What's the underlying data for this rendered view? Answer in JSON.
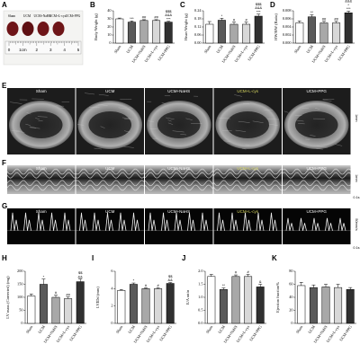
{
  "photo": {
    "panel": "A",
    "labels": [
      "Sham",
      "UCM",
      "UCM+NaHS",
      "UCM+L-cys",
      "UCM+PPG"
    ],
    "ruler": [
      "0",
      "1cm",
      "2",
      "3",
      "4",
      "5"
    ]
  },
  "echo": {
    "panel": "E",
    "labels": [
      "Sham",
      "UCM",
      "UCM+NaHS",
      "UCM+L-cys",
      "UCM+PPG"
    ],
    "scale": [
      "1mm"
    ]
  },
  "mmode": {
    "panel": "F",
    "labels": [
      "Sham",
      "UCM",
      "UCM+NaHS",
      "UCM+L-cys",
      "UCM+PPG"
    ],
    "scale": [
      "1mm",
      "0.1s"
    ]
  },
  "doppler": {
    "panel": "G",
    "labels": [
      "Sham",
      "UCM",
      "UCM+NaHS",
      "UCM+L-cys",
      "UCM+PPG"
    ],
    "scale": [
      "50mm/s",
      "0.1s"
    ]
  },
  "chart_data": [
    {
      "type": "bar",
      "panel": "B",
      "ylabel": "Body Weight (g)",
      "categories": [
        "Sham",
        "UCM",
        "UCM+NaHS",
        "UCM+L-cys",
        "UCM+PPG"
      ],
      "colors": [
        "#ffffff",
        "#5a5a5a",
        "#a8a8a8",
        "#d8d8d8",
        "#303030"
      ],
      "values": [
        30,
        26,
        28,
        28,
        26
      ],
      "errors": [
        1,
        1.5,
        1,
        1,
        1
      ],
      "annotations": [
        null,
        [
          "***"
        ],
        [
          "##"
        ],
        [
          "##"
        ],
        [
          "***",
          "&&&",
          "$$$"
        ]
      ],
      "ylim": [
        0,
        40
      ],
      "yticks": [
        0,
        10,
        20,
        30,
        40
      ]
    },
    {
      "type": "bar",
      "panel": "C",
      "ylabel": "Heart Weight (g)",
      "categories": [
        "Sham",
        "UCM",
        "UCM+NaHS",
        "UCM+L-cys",
        "UCM+PPG"
      ],
      "colors": [
        "#ffffff",
        "#5a5a5a",
        "#a8a8a8",
        "#d8d8d8",
        "#303030"
      ],
      "values": [
        0.14,
        0.17,
        0.14,
        0.14,
        0.2
      ],
      "errors": [
        0.02,
        0.015,
        0.015,
        0.015,
        0.015
      ],
      "annotations": [
        null,
        [
          "*"
        ],
        [
          "#"
        ],
        [
          "#"
        ],
        [
          "***",
          "&&&",
          "$$$"
        ]
      ],
      "ylim": [
        0,
        0.24
      ],
      "yticks": [
        {
          "value": 0,
          "label": "0.00"
        },
        0.06,
        0.12,
        0.18,
        0.24
      ]
    },
    {
      "type": "bar",
      "panel": "D",
      "ylabel": "HW/BW (Ratio)",
      "categories": [
        "Sham",
        "UCM",
        "UCM+NaHS",
        "UCM+L-cys",
        "UCM+PPG"
      ],
      "colors": [
        "#ffffff",
        "#5a5a5a",
        "#a8a8a8",
        "#d8d8d8",
        "#303030"
      ],
      "values": [
        0.005,
        0.0065,
        0.005,
        0.005,
        0.0075
      ],
      "errors": [
        0.0005,
        0.0005,
        0.0004,
        0.0004,
        0.0004
      ],
      "annotations": [
        null,
        [
          "**"
        ],
        [
          "##"
        ],
        [
          "##"
        ],
        [
          "***",
          "*",
          "&&&",
          "$$$"
        ]
      ],
      "ylim": [
        0,
        0.008
      ],
      "yticks": [
        {
          "value": 0,
          "label": "0.000"
        },
        0.002,
        0.004,
        0.006,
        0.008
      ]
    },
    {
      "type": "bar",
      "panel": "H",
      "ylabel": "LV mass (Corrected) (mg)",
      "categories": [
        "Sham",
        "UCM",
        "UCM+NaHS",
        "UCM+L-cys",
        "UCM+PPG"
      ],
      "colors": [
        "#ffffff",
        "#5a5a5a",
        "#a8a8a8",
        "#d8d8d8",
        "#303030"
      ],
      "values": [
        105,
        150,
        100,
        95,
        160
      ],
      "errors": [
        8,
        20,
        8,
        6,
        10
      ],
      "annotations": [
        null,
        [
          "*"
        ],
        [
          "#"
        ],
        [
          "##"
        ],
        [
          "&&",
          "$$"
        ]
      ],
      "ylim": [
        0,
        200
      ],
      "yticks": [
        0,
        50,
        100,
        150,
        200
      ]
    },
    {
      "type": "bar",
      "panel": "I",
      "ylabel": "LVIDd (mm)",
      "categories": [
        "Sham",
        "UCM",
        "UCM+NaHS",
        "UCM+L-cys",
        "UCM+PPG"
      ],
      "colors": [
        "#ffffff",
        "#5a5a5a",
        "#a8a8a8",
        "#d8d8d8",
        "#303030"
      ],
      "values": [
        3.8,
        4.5,
        4,
        4,
        4.6
      ],
      "errors": [
        0.1,
        0.15,
        0.1,
        0.1,
        0.1
      ],
      "annotations": [
        null,
        [
          "*"
        ],
        [
          "#"
        ],
        [
          "#"
        ],
        [
          "&&",
          "$$"
        ]
      ],
      "ylim": [
        0,
        6
      ],
      "yticks": [
        0,
        2,
        4,
        6
      ]
    },
    {
      "type": "bar",
      "panel": "J",
      "ylabel": "E/A ratio",
      "categories": [
        "Sham",
        "UCM",
        "UCM+NaHS",
        "UCM+L-cys",
        "UCM+PPG"
      ],
      "colors": [
        "#ffffff",
        "#5a5a5a",
        "#a8a8a8",
        "#d8d8d8",
        "#303030"
      ],
      "values": [
        1.8,
        1.3,
        1.8,
        1.8,
        1.4
      ],
      "errors": [
        0.08,
        0.06,
        0.06,
        0.08,
        0.1
      ],
      "annotations": [
        null,
        [
          "**"
        ],
        [
          "#"
        ],
        [
          "#"
        ],
        [
          "&"
        ]
      ],
      "ylim": [
        0,
        2
      ],
      "yticks": [
        {
          "value": 0,
          "label": "0.0"
        },
        0.5,
        {
          "value": 1,
          "label": "1.0"
        },
        1.5,
        {
          "value": 2,
          "label": "2.0"
        }
      ]
    },
    {
      "type": "bar",
      "panel": "K",
      "ylabel": "Ejection fraction%",
      "categories": [
        "Sham",
        "UCM",
        "UCM+NaHS",
        "UCM+L-cys",
        "UCM+PPG"
      ],
      "colors": [
        "#ffffff",
        "#5a5a5a",
        "#a8a8a8",
        "#d8d8d8",
        "#303030"
      ],
      "values": [
        58,
        55,
        56,
        55,
        52
      ],
      "errors": [
        5,
        4,
        4,
        5,
        3
      ],
      "annotations": [
        null,
        null,
        null,
        null,
        null
      ],
      "ylim": [
        0,
        80
      ],
      "yticks": [
        0,
        20,
        40,
        60,
        80
      ]
    }
  ]
}
